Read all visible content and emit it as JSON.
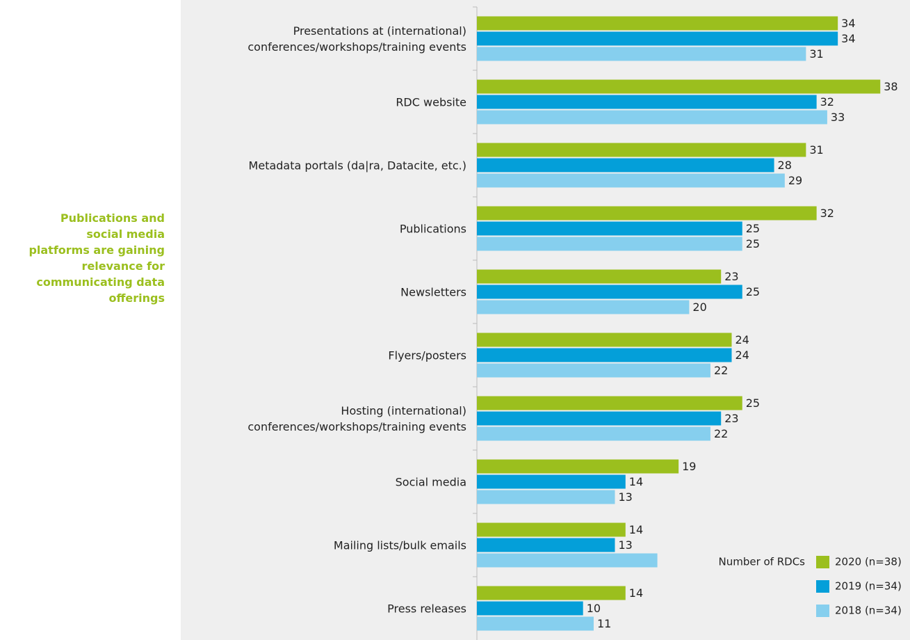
{
  "annotation": "Publications and social media platforms are gaining relevance for communicating data offerings",
  "chart_data": {
    "type": "hbar",
    "categories": [
      "Presentations at (international) conferences/workshops/training events",
      "RDC website",
      "Metadata portals (da|ra, Datacite, etc.)",
      "Publications",
      "Newsletters",
      "Flyers/posters",
      "Hosting (international) conferences/workshops/training events",
      "Social media",
      "Mailing lists/bulk emails",
      "Press releases"
    ],
    "series": [
      {
        "name": "2020 (n=38)",
        "color": "#9bbf1e",
        "values": [
          34,
          38,
          31,
          32,
          23,
          24,
          25,
          19,
          14,
          14
        ]
      },
      {
        "name": "2019 (n=34)",
        "color": "#049fd9",
        "values": [
          34,
          32,
          28,
          25,
          25,
          24,
          23,
          14,
          13,
          10
        ]
      },
      {
        "name": "2018 (n=34)",
        "color": "#86cfee",
        "values": [
          31,
          33,
          29,
          25,
          20,
          22,
          22,
          13,
          17,
          11
        ],
        "value_labels": [
          "31",
          "33",
          "29",
          "25",
          "20",
          "22",
          "22",
          "13",
          null,
          "11"
        ]
      }
    ],
    "legend_title": "Number of RDCs",
    "legend": "bottom-right",
    "xlim": [
      0,
      40
    ]
  }
}
